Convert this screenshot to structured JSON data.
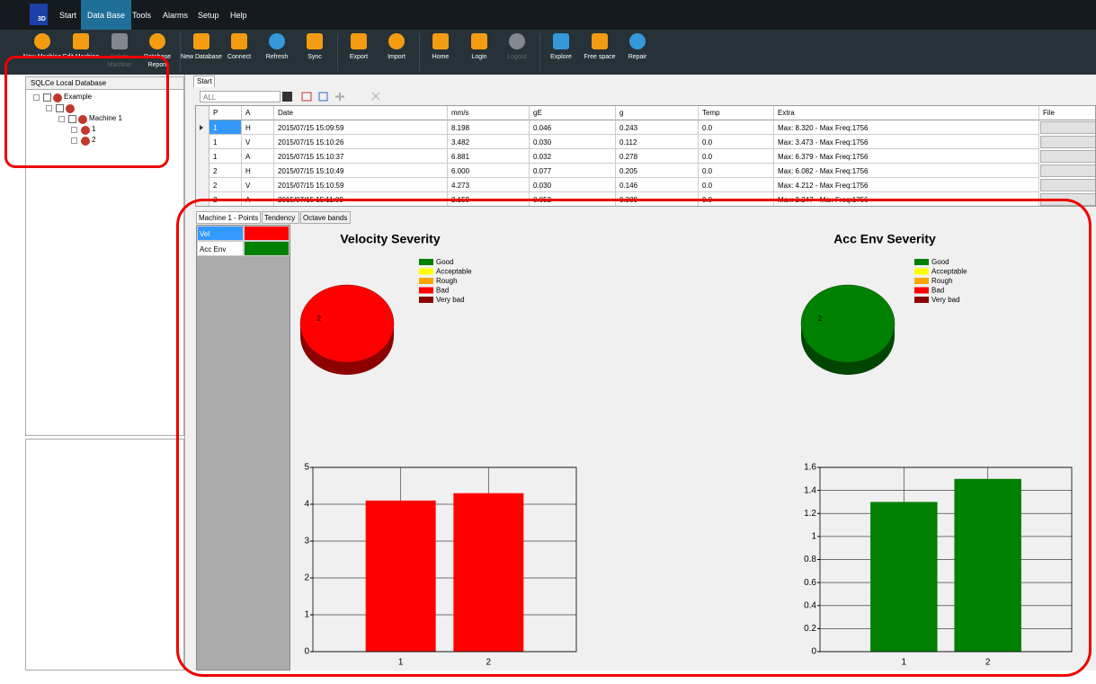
{
  "menu": {
    "logo": "3D",
    "items": [
      "Start",
      "Data Base",
      "Tools",
      "Alarms",
      "Setup",
      "Help"
    ]
  },
  "toolbar": [
    {
      "label": "New Machine"
    },
    {
      "label": "Edit Machine"
    },
    {
      "label": "Delete Machine",
      "enabled": false
    },
    {
      "label": "Database Report"
    },
    {
      "label": "New Database"
    },
    {
      "label": "Connect"
    },
    {
      "label": "Refresh"
    },
    {
      "label": "Sync"
    },
    {
      "label": "Export"
    },
    {
      "label": "Import"
    },
    {
      "label": "Home"
    },
    {
      "label": "Login"
    },
    {
      "label": "Logout",
      "enabled": false
    },
    {
      "label": "Explore"
    },
    {
      "label": "Free space"
    },
    {
      "label": "Repair"
    }
  ],
  "tree": {
    "header": "SQLCe Local Database",
    "nodes": [
      "Example",
      "Machine 1",
      "1",
      "2"
    ]
  },
  "tabs": [
    "Start"
  ],
  "filter": "ALL",
  "grid": {
    "columns": [
      "P",
      "A",
      "Date",
      "mm/s",
      "gE",
      "g",
      "Temp",
      "Extra",
      "File"
    ],
    "rows": [
      [
        "1",
        "H",
        "2015/07/15 15:09:59",
        "8.198",
        "0.046",
        "0.243",
        "0.0",
        "Max: 8.320 - Max Freq:1756"
      ],
      [
        "1",
        "V",
        "2015/07/15 15:10:26",
        "3.482",
        "0.030",
        "0.112",
        "0.0",
        "Max: 3.473 - Max Freq:1756"
      ],
      [
        "1",
        "A",
        "2015/07/15 15:10:37",
        "6.881",
        "0.032",
        "0.278",
        "0.0",
        "Max: 6.379 - Max Freq:1756"
      ],
      [
        "2",
        "H",
        "2015/07/15 15:10:49",
        "6.000",
        "0.077",
        "0.205",
        "0.0",
        "Max: 6.082 - Max Freq:1756"
      ],
      [
        "2",
        "V",
        "2015/07/15 15:10:59",
        "4.273",
        "0.030",
        "0.146",
        "0.0",
        "Max: 4.212 - Max Freq:1756"
      ],
      [
        "2",
        "A",
        "2015/07/15 15:11:09",
        "2.159",
        "0.052",
        "0.339",
        "0.0",
        "Max: 2.247 - Max Freq:1756"
      ]
    ]
  },
  "detail_tabs": [
    "Machine 1 - Points",
    "Tendency",
    "Octave bands"
  ],
  "points": [
    {
      "name": "Vel",
      "color": "#ff0000"
    },
    {
      "name": "Acc Env",
      "color": "#008000"
    }
  ],
  "chart_data": [
    {
      "type": "pie",
      "title": "Velocity Severity",
      "categories": [
        "Good",
        "Acceptable",
        "Rough",
        "Bad",
        "Very bad"
      ],
      "values": [
        0,
        0,
        0,
        2,
        0
      ],
      "colors": [
        "#008000",
        "#ffff00",
        "#ffa500",
        "#ff0000",
        "#8b0000"
      ]
    },
    {
      "type": "pie",
      "title": "Acc Env Severity",
      "categories": [
        "Good",
        "Acceptable",
        "Rough",
        "Bad",
        "Very bad"
      ],
      "values": [
        2,
        0,
        0,
        0,
        0
      ],
      "colors": [
        "#008000",
        "#ffff00",
        "#ffa500",
        "#ff0000",
        "#8b0000"
      ]
    },
    {
      "type": "bar",
      "categories": [
        "1",
        "2"
      ],
      "values": [
        4.1,
        4.3
      ],
      "color": "#ff0000",
      "ylim": [
        0,
        5
      ],
      "yticks": [
        0,
        1,
        2,
        3,
        4,
        5
      ],
      "grid": true
    },
    {
      "type": "bar",
      "categories": [
        "1",
        "2"
      ],
      "values": [
        1.3,
        1.5
      ],
      "color": "#008000",
      "ylim": [
        0,
        1.6
      ],
      "yticks": [
        0,
        0.2,
        0.4,
        0.6,
        0.8,
        1,
        1.2,
        1.4,
        1.6
      ],
      "grid": true
    }
  ]
}
